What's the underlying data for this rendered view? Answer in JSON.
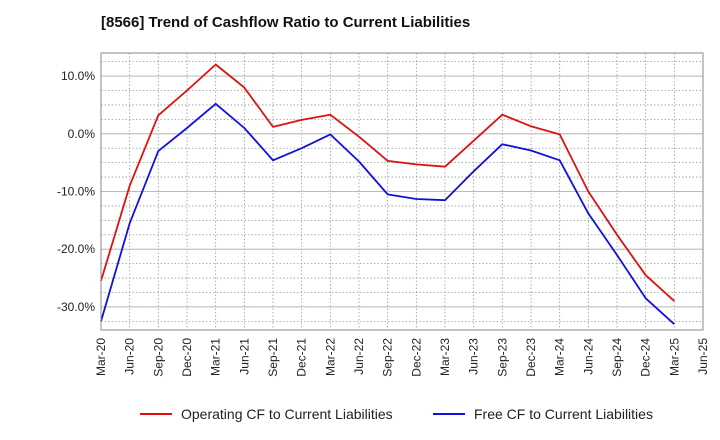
{
  "title": "[8566]  Trend of Cashflow Ratio to Current Liabilities",
  "colors": {
    "operating": "#dd1111",
    "free": "#1111dd",
    "grid": "#999999",
    "axis": "#888888"
  },
  "chart_data": {
    "type": "line",
    "title": "[8566]  Trend of Cashflow Ratio to Current Liabilities",
    "xlabel": "",
    "ylabel": "",
    "grid": true,
    "legend_position": "bottom",
    "x_ticks": [
      "Mar-20",
      "Jun-20",
      "Sep-20",
      "Dec-20",
      "Mar-21",
      "Jun-21",
      "Sep-21",
      "Dec-21",
      "Mar-22",
      "Jun-22",
      "Sep-22",
      "Dec-22",
      "Mar-23",
      "Jun-23",
      "Sep-23",
      "Dec-23",
      "Mar-24",
      "Jun-24",
      "Sep-24",
      "Dec-24",
      "Mar-25",
      "Jun-25"
    ],
    "y_ticks": [
      10,
      0,
      -10,
      -20,
      -30
    ],
    "y_tick_labels": [
      "10.0%",
      "0.0%",
      "-10.0%",
      "-20.0%",
      "-30.0%"
    ],
    "ylim": [
      -34,
      14
    ],
    "series": [
      {
        "name": "Operating CF to Current Liabilities",
        "color": "#dd1111",
        "x": [
          "Mar-20",
          "Jun-20",
          "Sep-20",
          "Dec-20",
          "Mar-21",
          "Jun-21",
          "Sep-21",
          "Dec-21",
          "Mar-22",
          "Jun-22",
          "Sep-22",
          "Dec-22",
          "Mar-23",
          "Jun-23",
          "Sep-23",
          "Dec-23",
          "Mar-24",
          "Jun-24",
          "Sep-24",
          "Dec-24",
          "Mar-25"
        ],
        "values": [
          -25.5,
          -9.0,
          3.2,
          7.5,
          12.0,
          8.0,
          1.2,
          2.4,
          3.3,
          -0.5,
          -4.7,
          -5.3,
          -5.7,
          -1.2,
          3.3,
          1.3,
          -0.1,
          -10.0,
          -17.5,
          -24.5,
          -29.0
        ]
      },
      {
        "name": "Free CF to Current Liabilities",
        "color": "#1111dd",
        "x": [
          "Mar-20",
          "Jun-20",
          "Sep-20",
          "Dec-20",
          "Mar-21",
          "Jun-21",
          "Sep-21",
          "Dec-21",
          "Mar-22",
          "Jun-22",
          "Sep-22",
          "Dec-22",
          "Mar-23",
          "Jun-23",
          "Sep-23",
          "Dec-23",
          "Mar-24",
          "Jun-24",
          "Sep-24",
          "Dec-24",
          "Mar-25"
        ],
        "values": [
          -32.5,
          -15.5,
          -3.0,
          1.0,
          5.2,
          1.0,
          -4.6,
          -2.5,
          -0.1,
          -4.8,
          -10.5,
          -11.3,
          -11.5,
          -6.5,
          -1.8,
          -2.9,
          -4.6,
          -13.8,
          -21.0,
          -28.5,
          -33.0
        ]
      }
    ]
  }
}
